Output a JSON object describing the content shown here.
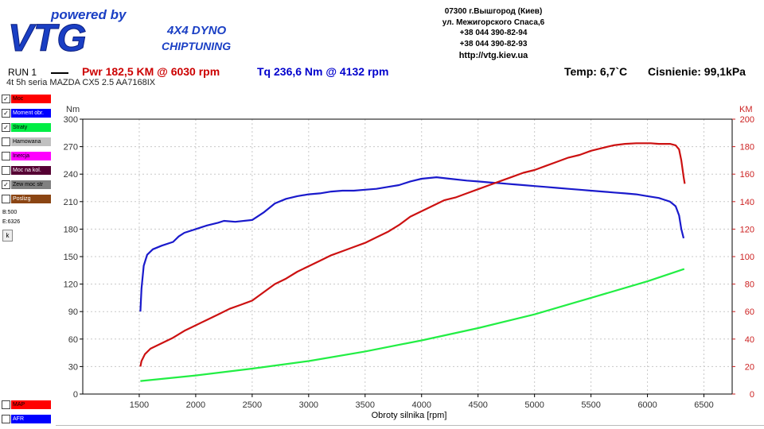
{
  "header": {
    "brand_tagline": "powered by",
    "brand_name": "VTG",
    "brand_sub1": "4X4 DYNO",
    "brand_sub2": "CHIPTUNING",
    "contact": [
      "07300 г.Вышгород (Киев)",
      "ул. Межигорского Спаса,6",
      "+38 044 390-82-94",
      "+38 044 390-82-93"
    ],
    "url": "http://vtg.kiev.ua"
  },
  "run": {
    "label": "RUN 1",
    "power": "Pwr  182,5 KM @ 6030 rpm",
    "torque": "Tq 236,6 Nm @ 4132 rpm",
    "vehicle": "4t 5h seria MAZDA CX5 2.5 AA7168IX",
    "temp": "Temp: 6,7`C",
    "pressure": "Cisnienie: 99,1kPa"
  },
  "legend": [
    {
      "label": "Moc",
      "checked": true,
      "color": "#ff0000"
    },
    {
      "label": "Moment obr.",
      "checked": true,
      "color": "#0000ff"
    },
    {
      "label": "Straty",
      "checked": true,
      "color": "#00ee44"
    },
    {
      "label": "Hamowana",
      "checked": false,
      "color": "#c0c0c0"
    },
    {
      "label": "Inercja",
      "checked": false,
      "color": "#ff00ff"
    },
    {
      "label": "Moc na kol.",
      "checked": false,
      "color": "#550033"
    },
    {
      "label": "Zew moc str",
      "checked": true,
      "color": "#808080"
    },
    {
      "label": "Poslizg",
      "checked": false,
      "color": "#8b4513"
    }
  ],
  "markers": {
    "b": "B:500",
    "e": "E:6326",
    "k_button": "k"
  },
  "legend_bottom": [
    {
      "label": "MAP",
      "checked": false,
      "color": "#ff0000"
    },
    {
      "label": "AFR",
      "checked": false,
      "color": "#0000ff"
    }
  ],
  "chart_data": {
    "type": "line",
    "xlabel": "Obroty silnika [rpm]",
    "ylabel_left": "Nm",
    "ylabel_right": "KM",
    "xlim": [
      1000,
      6750
    ],
    "ylim_left": [
      0,
      300
    ],
    "ylim_right": [
      0,
      200
    ],
    "x_ticks": [
      1500,
      2000,
      2500,
      3000,
      3500,
      4000,
      4500,
      5000,
      5500,
      6000,
      6500
    ],
    "y_ticks_left": [
      0,
      30,
      60,
      90,
      120,
      150,
      180,
      210,
      240,
      270,
      300
    ],
    "y_ticks_right": [
      0,
      20,
      40,
      60,
      80,
      100,
      120,
      140,
      160,
      180,
      200
    ],
    "grid": true,
    "series": [
      {
        "name": "Moment obr.",
        "axis": "left",
        "color": "#1a1acc",
        "points": [
          [
            1510,
            90
          ],
          [
            1520,
            115
          ],
          [
            1540,
            140
          ],
          [
            1570,
            152
          ],
          [
            1620,
            158
          ],
          [
            1700,
            162
          ],
          [
            1800,
            166
          ],
          [
            1850,
            172
          ],
          [
            1900,
            176
          ],
          [
            2000,
            180
          ],
          [
            2100,
            184
          ],
          [
            2200,
            187
          ],
          [
            2250,
            189
          ],
          [
            2350,
            188
          ],
          [
            2500,
            190
          ],
          [
            2600,
            198
          ],
          [
            2700,
            208
          ],
          [
            2800,
            213
          ],
          [
            2900,
            216
          ],
          [
            3000,
            218
          ],
          [
            3100,
            219
          ],
          [
            3200,
            221
          ],
          [
            3300,
            222
          ],
          [
            3400,
            222
          ],
          [
            3500,
            223
          ],
          [
            3600,
            224
          ],
          [
            3700,
            226
          ],
          [
            3800,
            228
          ],
          [
            3900,
            232
          ],
          [
            4000,
            235
          ],
          [
            4132,
            236.6
          ],
          [
            4250,
            235
          ],
          [
            4400,
            233
          ],
          [
            4500,
            232
          ],
          [
            4600,
            231
          ],
          [
            4700,
            230
          ],
          [
            4800,
            229
          ],
          [
            4900,
            228
          ],
          [
            5000,
            227
          ],
          [
            5100,
            226
          ],
          [
            5200,
            225
          ],
          [
            5300,
            224
          ],
          [
            5400,
            223
          ],
          [
            5500,
            222
          ],
          [
            5600,
            221
          ],
          [
            5700,
            220
          ],
          [
            5800,
            219
          ],
          [
            5900,
            218
          ],
          [
            6000,
            216
          ],
          [
            6100,
            214
          ],
          [
            6150,
            212
          ],
          [
            6200,
            210
          ],
          [
            6250,
            205
          ],
          [
            6280,
            195
          ],
          [
            6300,
            180
          ],
          [
            6320,
            170
          ]
        ]
      },
      {
        "name": "Moc",
        "axis": "right",
        "color": "#cc1111",
        "points": [
          [
            1510,
            20
          ],
          [
            1520,
            24
          ],
          [
            1550,
            29
          ],
          [
            1600,
            33
          ],
          [
            1700,
            37
          ],
          [
            1800,
            41
          ],
          [
            1900,
            46
          ],
          [
            2000,
            50
          ],
          [
            2100,
            54
          ],
          [
            2200,
            58
          ],
          [
            2300,
            62
          ],
          [
            2400,
            65
          ],
          [
            2500,
            68
          ],
          [
            2600,
            74
          ],
          [
            2700,
            80
          ],
          [
            2800,
            84
          ],
          [
            2900,
            89
          ],
          [
            3000,
            93
          ],
          [
            3100,
            97
          ],
          [
            3200,
            101
          ],
          [
            3300,
            104
          ],
          [
            3400,
            107
          ],
          [
            3500,
            110
          ],
          [
            3600,
            114
          ],
          [
            3700,
            118
          ],
          [
            3800,
            123
          ],
          [
            3900,
            129
          ],
          [
            4000,
            133
          ],
          [
            4100,
            137
          ],
          [
            4200,
            141
          ],
          [
            4300,
            143
          ],
          [
            4400,
            146
          ],
          [
            4500,
            149
          ],
          [
            4600,
            152
          ],
          [
            4700,
            155
          ],
          [
            4800,
            158
          ],
          [
            4900,
            161
          ],
          [
            5000,
            163
          ],
          [
            5100,
            166
          ],
          [
            5200,
            169
          ],
          [
            5300,
            172
          ],
          [
            5400,
            174
          ],
          [
            5500,
            177
          ],
          [
            5600,
            179
          ],
          [
            5700,
            181
          ],
          [
            5800,
            182
          ],
          [
            5900,
            182.5
          ],
          [
            6030,
            182.5
          ],
          [
            6100,
            182
          ],
          [
            6200,
            182
          ],
          [
            6250,
            181
          ],
          [
            6280,
            178
          ],
          [
            6300,
            170
          ],
          [
            6320,
            158
          ],
          [
            6330,
            153
          ]
        ]
      },
      {
        "name": "Straty",
        "axis": "right",
        "color": "#22ee44",
        "points": [
          [
            1510,
            9.5
          ],
          [
            2000,
            13.5
          ],
          [
            2500,
            18.5
          ],
          [
            3000,
            24
          ],
          [
            3500,
            31
          ],
          [
            4000,
            39
          ],
          [
            4500,
            48
          ],
          [
            5000,
            58
          ],
          [
            5500,
            70
          ],
          [
            6000,
            82
          ],
          [
            6326,
            91
          ]
        ]
      }
    ]
  }
}
